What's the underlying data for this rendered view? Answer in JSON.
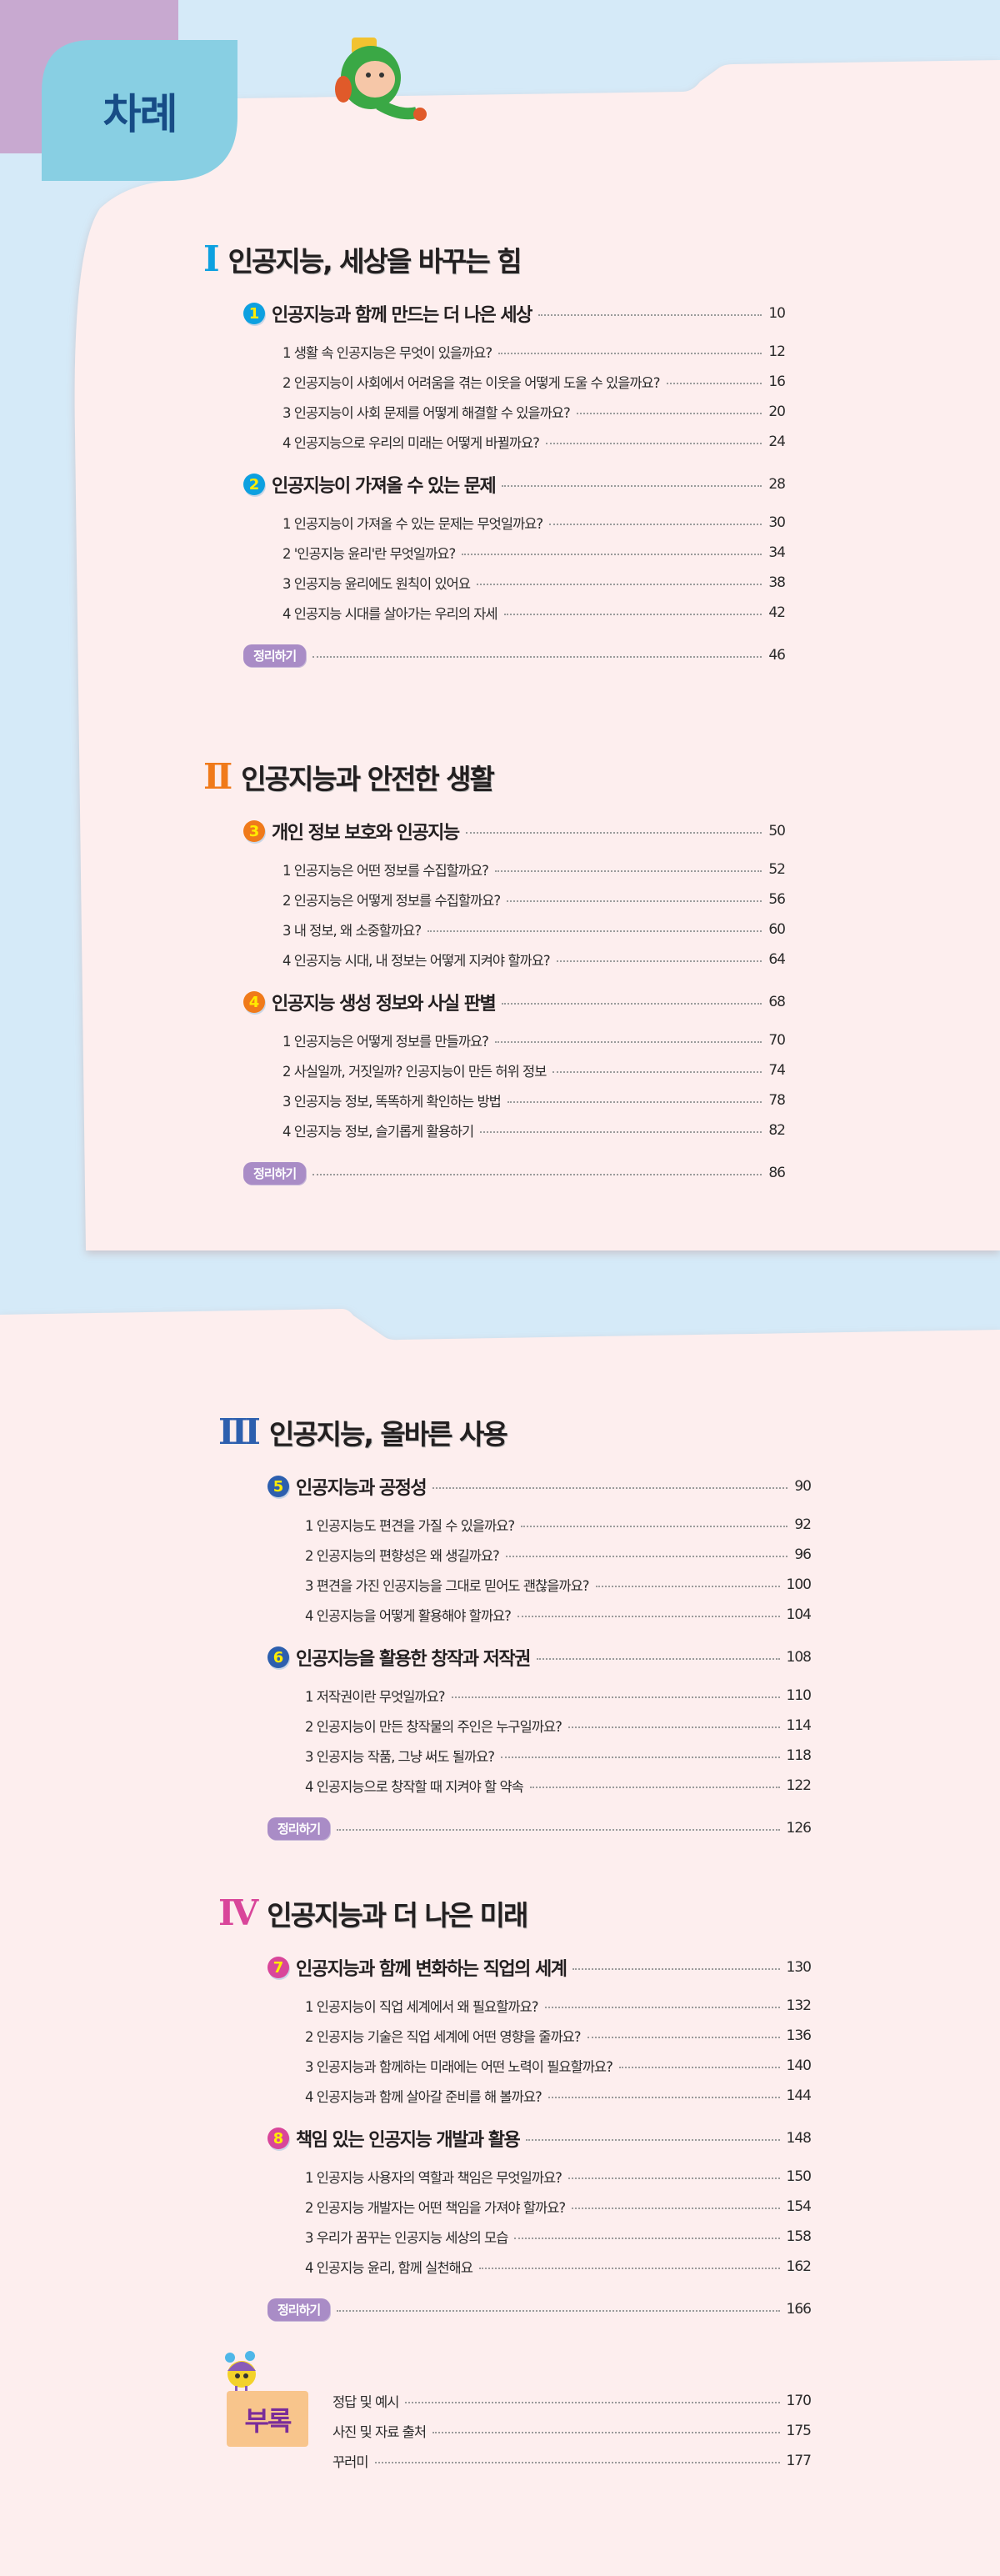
{
  "header": {
    "title": "차례"
  },
  "colors": {
    "background_top": "#d5eaf8",
    "page": "#fdeeee",
    "corner": "#c8a9d0",
    "title_tab": "#88cfe3",
    "title_text": "#174c86",
    "summary_pill": "#a98cc6",
    "appendix_block": "#f8c58c"
  },
  "parts": [
    {
      "numeral": "I",
      "title": "인공지능, 세상을 바꾸는 힘",
      "color": "#0da0e0",
      "chapters": [
        {
          "number": "1",
          "title": "인공지능과 함께 만드는 더 나은 세상",
          "page": "10",
          "items": [
            {
              "title": "1 생활 속 인공지능은 무엇이 있을까요?",
              "page": "12"
            },
            {
              "title": "2 인공지능이 사회에서 어려움을 겪는 이웃을 어떻게 도울 수 있을까요?",
              "page": "16"
            },
            {
              "title": "3 인공지능이 사회 문제를 어떻게 해결할 수 있을까요?",
              "page": "20"
            },
            {
              "title": "4 인공지능으로 우리의 미래는 어떻게 바뀔까요?",
              "page": "24"
            }
          ]
        },
        {
          "number": "2",
          "title": "인공지능이 가져올 수 있는 문제",
          "page": "28",
          "items": [
            {
              "title": "1 인공지능이 가져올 수 있는 문제는 무엇일까요?",
              "page": "30"
            },
            {
              "title": "2 '인공지능 윤리'란 무엇일까요?",
              "page": "34"
            },
            {
              "title": "3 인공지능 윤리에도 원칙이 있어요",
              "page": "38"
            },
            {
              "title": "4 인공지능 시대를 살아가는 우리의 자세",
              "page": "42"
            }
          ]
        }
      ],
      "summary": {
        "label": "정리하기",
        "page": "46"
      }
    },
    {
      "numeral": "II",
      "title": "인공지능과 안전한 생활",
      "color": "#f07a1a",
      "chapters": [
        {
          "number": "3",
          "title": "개인 정보 보호와 인공지능",
          "page": "50",
          "items": [
            {
              "title": "1 인공지능은 어떤 정보를 수집할까요?",
              "page": "52"
            },
            {
              "title": "2 인공지능은 어떻게 정보를 수집할까요?",
              "page": "56"
            },
            {
              "title": "3 내 정보, 왜 소중할까요?",
              "page": "60"
            },
            {
              "title": "4 인공지능 시대, 내 정보는 어떻게 지켜야 할까요?",
              "page": "64"
            }
          ]
        },
        {
          "number": "4",
          "title": "인공지능 생성 정보와 사실 판별",
          "page": "68",
          "items": [
            {
              "title": "1 인공지능은 어떻게 정보를 만들까요?",
              "page": "70"
            },
            {
              "title": "2 사실일까, 거짓일까? 인공지능이 만든 허위 정보",
              "page": "74"
            },
            {
              "title": "3 인공지능 정보, 똑똑하게 확인하는 방법",
              "page": "78"
            },
            {
              "title": "4 인공지능 정보, 슬기롭게 활용하기",
              "page": "82"
            }
          ]
        }
      ],
      "summary": {
        "label": "정리하기",
        "page": "86"
      }
    },
    {
      "numeral": "III",
      "title": "인공지능, 올바른 사용",
      "color": "#2d5fae",
      "chapters": [
        {
          "number": "5",
          "title": "인공지능과 공정성",
          "page": "90",
          "items": [
            {
              "title": "1 인공지능도 편견을 가질 수 있을까요?",
              "page": "92"
            },
            {
              "title": "2 인공지능의 편향성은 왜 생길까요?",
              "page": "96"
            },
            {
              "title": "3 편견을 가진 인공지능을 그대로 믿어도 괜찮을까요?",
              "page": "100"
            },
            {
              "title": "4 인공지능을 어떻게 활용해야 할까요?",
              "page": "104"
            }
          ]
        },
        {
          "number": "6",
          "title": "인공지능을 활용한 창작과 저작권",
          "page": "108",
          "items": [
            {
              "title": "1 저작권이란 무엇일까요?",
              "page": "110"
            },
            {
              "title": "2 인공지능이 만든 창작물의 주인은 누구일까요?",
              "page": "114"
            },
            {
              "title": "3 인공지능 작품, 그냥 써도 될까요?",
              "page": "118"
            },
            {
              "title": "4 인공지능으로 창작할 때 지켜야 할 약속",
              "page": "122"
            }
          ]
        }
      ],
      "summary": {
        "label": "정리하기",
        "page": "126"
      }
    },
    {
      "numeral": "IV",
      "title": "인공지능과 더 나은 미래",
      "color": "#d9469a",
      "chapters": [
        {
          "number": "7",
          "title": "인공지능과 함께 변화하는 직업의 세계",
          "page": "130",
          "items": [
            {
              "title": "1 인공지능이 직업 세계에서 왜 필요할까요?",
              "page": "132"
            },
            {
              "title": "2 인공지능 기술은 직업 세계에 어떤 영향을 줄까요?",
              "page": "136"
            },
            {
              "title": "3 인공지능과 함께하는 미래에는 어떤 노력이 필요할까요?",
              "page": "140"
            },
            {
              "title": "4 인공지능과 함께 살아갈 준비를 해 볼까요?",
              "page": "144"
            }
          ]
        },
        {
          "number": "8",
          "title": "책임 있는 인공지능 개발과 활용",
          "page": "148",
          "items": [
            {
              "title": "1 인공지능 사용자의 역할과 책임은 무엇일까요?",
              "page": "150"
            },
            {
              "title": "2 인공지능 개발자는 어떤 책임을 가져야 할까요?",
              "page": "154"
            },
            {
              "title": "3 우리가 꿈꾸는 인공지능 세상의 모습",
              "page": "158"
            },
            {
              "title": "4 인공지능 윤리, 함께 실천해요",
              "page": "162"
            }
          ]
        }
      ],
      "summary": {
        "label": "정리하기",
        "page": "166"
      }
    }
  ],
  "appendix": {
    "label": "부록",
    "items": [
      {
        "title": "정답 및 예시",
        "page": "170"
      },
      {
        "title": "사진 및 자료 출처",
        "page": "175"
      },
      {
        "title": "꾸러미",
        "page": "177"
      }
    ]
  },
  "icons": {
    "mascot_top": "green-robot-mascot",
    "mascot_appendix": "purple-hat-mascot"
  }
}
